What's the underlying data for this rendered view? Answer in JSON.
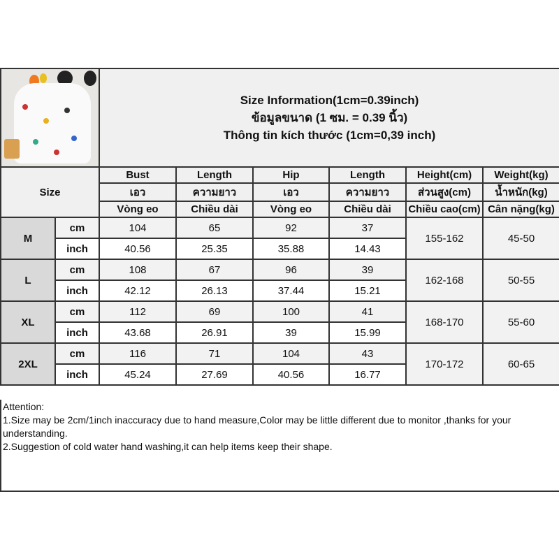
{
  "header": {
    "title_en": "Size Information(1cm=0.39inch)",
    "title_th": "ข้อมูลขนาด (1 ซม. = 0.39 นิ้ว)",
    "title_vi": "Thông tin kích thước (1cm=0,39 inch)",
    "product_image": "product-photo-printed-dress"
  },
  "size_label": "Size",
  "columns": [
    {
      "en": "Bust",
      "th": "เอว",
      "vi": "Vòng eo"
    },
    {
      "en": "Length",
      "th": "ความยาว",
      "vi": "Chiều dài"
    },
    {
      "en": "Hip",
      "th": "เอว",
      "vi": "Vòng eo"
    },
    {
      "en": "Length",
      "th": "ความยาว",
      "vi": "Chiều dài"
    },
    {
      "en": "Height(cm)",
      "th": "ส่วนสูง(cm)",
      "vi": "Chiều cao(cm)"
    },
    {
      "en": "Weight(kg)",
      "th": "น้ำหนัก(kg)",
      "vi": "Cân nặng(kg)"
    }
  ],
  "units": {
    "cm": "cm",
    "inch": "inch"
  },
  "rows": [
    {
      "size": "M",
      "cm": [
        "104",
        "65",
        "92",
        "37"
      ],
      "inch": [
        "40.56",
        "25.35",
        "35.88",
        "14.43"
      ],
      "height": "155-162",
      "weight": "45-50"
    },
    {
      "size": "L",
      "cm": [
        "108",
        "67",
        "96",
        "39"
      ],
      "inch": [
        "42.12",
        "26.13",
        "37.44",
        "15.21"
      ],
      "height": "162-168",
      "weight": "50-55"
    },
    {
      "size": "XL",
      "cm": [
        "112",
        "69",
        "100",
        "41"
      ],
      "inch": [
        "43.68",
        "26.91",
        "39",
        "15.99"
      ],
      "height": "168-170",
      "weight": "55-60"
    },
    {
      "size": "2XL",
      "cm": [
        "116",
        "71",
        "104",
        "43"
      ],
      "inch": [
        "45.24",
        "27.69",
        "40.56",
        "16.77"
      ],
      "height": "170-172",
      "weight": "60-65"
    }
  ],
  "attention": {
    "heading": "Attention:",
    "line1": "1.Size may be 2cm/1inch inaccuracy due to hand measure,Color may be little different due to monitor ,thanks for your understanding.",
    "line2": "2.Suggestion of cold water hand washing,it can help items keep their shape."
  },
  "colors": {
    "header_bg": "#f0f0f0",
    "size_bg": "#d9d9d9",
    "cm_row_bg": "#f2f2f2",
    "border": "#333333"
  }
}
